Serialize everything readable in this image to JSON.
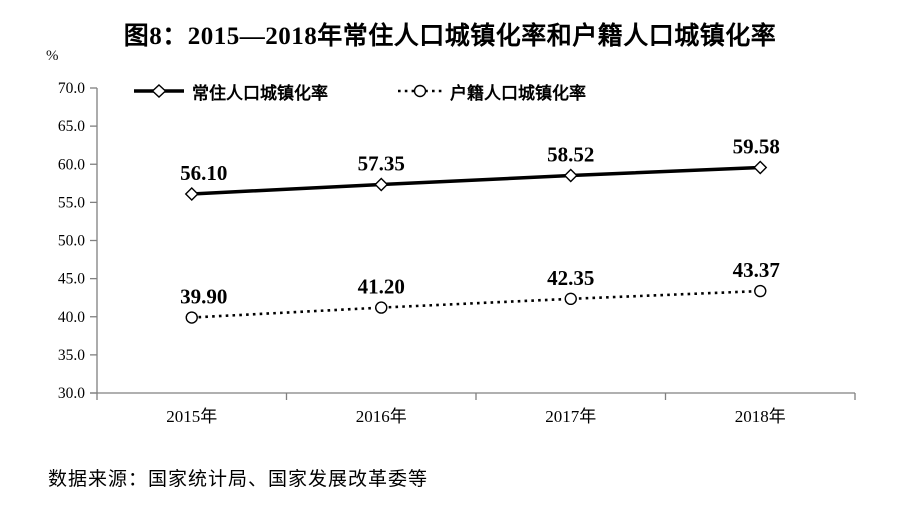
{
  "title": "图8：2015—2018年常住人口城镇化率和户籍人口城镇化率",
  "y_axis_unit": "%",
  "source_note": "数据来源：国家统计局、国家发展改革委等",
  "colors": {
    "series_line": "#000000",
    "axis": "#808080",
    "text": "#000000",
    "background": "#ffffff",
    "marker_fill": "#ffffff"
  },
  "chart_data": {
    "type": "line",
    "title": "图8：2015—2018年常住人口城镇化率和户籍人口城镇化率",
    "categories": [
      "2015年",
      "2016年",
      "2017年",
      "2018年"
    ],
    "series": [
      {
        "name": "常住人口城镇化率",
        "values": [
          56.1,
          57.35,
          58.52,
          59.58
        ],
        "data_labels": [
          "56.10",
          "57.35",
          "58.52",
          "59.58"
        ],
        "line_style": "solid",
        "marker": "diamond"
      },
      {
        "name": "户籍人口城镇化率",
        "values": [
          39.9,
          41.2,
          42.35,
          43.37
        ],
        "data_labels": [
          "39.90",
          "41.20",
          "42.35",
          "43.37"
        ],
        "line_style": "dotted",
        "marker": "circle"
      }
    ],
    "xlabel": "",
    "ylabel": "%",
    "ylim": [
      30.0,
      70.0
    ],
    "ytick_step": 5.0,
    "ytick_labels": [
      "70.0",
      "65.0",
      "60.0",
      "55.0",
      "50.0",
      "45.0",
      "40.0",
      "35.0",
      "30.0"
    ],
    "grid": false,
    "legend_position": "top-inside"
  }
}
